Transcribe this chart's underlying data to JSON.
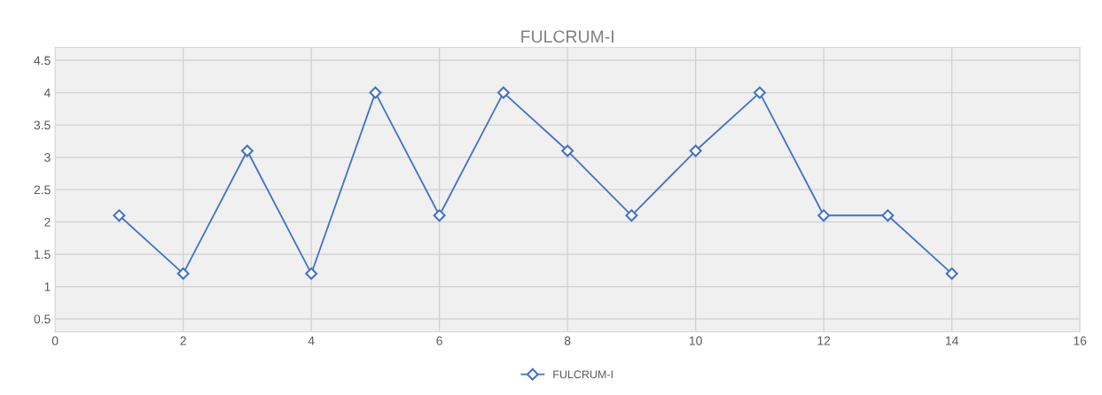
{
  "chart_data": {
    "type": "line",
    "title": "FULCRUM-I",
    "x": [
      1,
      2,
      3,
      4,
      5,
      6,
      7,
      8,
      9,
      10,
      11,
      12,
      13,
      14
    ],
    "series": [
      {
        "name": "FULCRUM-I",
        "color": "#4472c4",
        "values": [
          2.1,
          1.2,
          3.1,
          1.2,
          4.0,
          2.1,
          4.0,
          3.1,
          2.1,
          3.1,
          4.0,
          2.1,
          2.1,
          1.2
        ]
      }
    ],
    "xlim": [
      0,
      16
    ],
    "xticks": [
      0,
      2,
      4,
      6,
      8,
      10,
      12,
      14,
      16
    ],
    "ylim": [
      0.3,
      4.7
    ],
    "yticks": [
      0.5,
      1,
      1.5,
      2,
      2.5,
      3,
      3.5,
      4,
      4.5
    ],
    "grid": true,
    "legend": "bottom",
    "marker": "diamond",
    "line_style": "solid"
  }
}
